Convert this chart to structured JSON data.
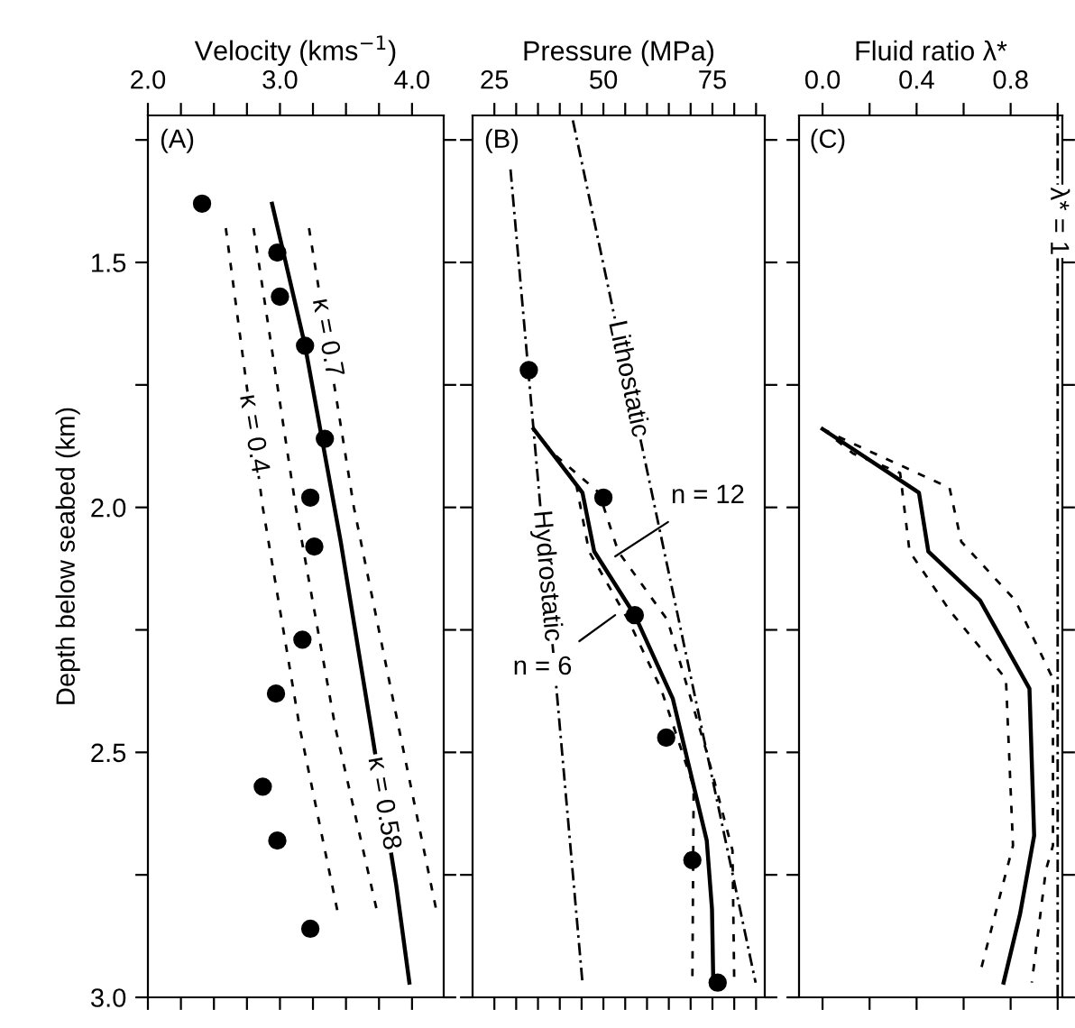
{
  "chart_data": [
    {
      "type": "line",
      "title": "Velocity (kms$^{−1}$)",
      "ylabel": "Depth below seabed (km)",
      "annotations": [
        "(A)"
      ],
      "xlim": [
        2.0,
        4.24
      ],
      "xticks": [
        {
          "value": 2.0,
          "label": "2.0"
        },
        {
          "value": 2.25,
          "label": null
        },
        {
          "value": 2.5,
          "label": null
        },
        {
          "value": 2.75,
          "label": null
        },
        {
          "value": 3.0,
          "label": "3.0"
        },
        {
          "value": 3.25,
          "label": null
        },
        {
          "value": 3.5,
          "label": null
        },
        {
          "value": 3.75,
          "label": null
        },
        {
          "value": 4.0,
          "label": "4.0"
        }
      ],
      "ylim": [
        3.0,
        1.2
      ],
      "yticks": [
        {
          "value": 1.25,
          "label": null
        },
        1.5,
        {
          "value": 1.75,
          "label": null
        },
        {
          "value": 2.0,
          "label": "2.0"
        },
        {
          "value": 2.25,
          "label": null
        },
        2.5,
        {
          "value": 2.75,
          "label": null
        },
        {
          "value": 3.0,
          "label": "3.0"
        }
      ],
      "grid": false,
      "legend": false,
      "series": [
        {
          "name": "κ = 0.4",
          "color": "#000000",
          "line_style": "dashed",
          "marker": "none",
          "x": [
            2.59,
            2.87,
            3.15,
            3.44
          ],
          "values": [
            1.43,
            2.0,
            2.45,
            2.83
          ]
        },
        {
          "color": "#000000",
          "line_style": "dashed",
          "marker": "none",
          "x": [
            2.8,
            3.12,
            3.42,
            3.74
          ],
          "values": [
            1.43,
            2.0,
            2.45,
            2.83
          ]
        },
        {
          "name": "κ = 0.58",
          "color": "#000000",
          "line_style": "solid",
          "marker": "none",
          "x": [
            2.94,
            3.19,
            3.46,
            3.69,
            3.88,
            3.98
          ],
          "values": [
            1.38,
            1.67,
            2.07,
            2.45,
            2.77,
            2.97
          ]
        },
        {
          "name": "κ = 0.7",
          "color": "#000000",
          "line_style": "dashed",
          "marker": "none",
          "x": [
            3.22,
            3.56,
            3.9,
            4.19
          ],
          "values": [
            1.43,
            2.0,
            2.45,
            2.83
          ]
        },
        {
          "type": "scatter",
          "color": "#000000",
          "marker": "circle",
          "x": [
            2.41,
            2.98,
            3.0,
            3.19,
            3.34,
            3.23,
            3.26,
            3.17,
            2.97,
            2.87,
            2.98,
            3.23
          ],
          "values": [
            1.38,
            1.48,
            1.57,
            1.67,
            1.86,
            1.98,
            2.08,
            2.27,
            2.38,
            2.57,
            2.68,
            2.86
          ]
        }
      ]
    },
    {
      "type": "line",
      "title": "Pressure (MPa)",
      "tick_labels": "x",
      "annotations": [
        "(B)",
        {
          "text": "n = 12",
          "x": 52.7,
          "y": 2.1
        },
        {
          "text": "n = 6",
          "x": 52.7,
          "y": 2.22
        }
      ],
      "xlim": [
        20,
        87
      ],
      "xticks": [
        25,
        {
          "value": 30,
          "label": null
        },
        {
          "value": 35,
          "label": null
        },
        {
          "value": 40,
          "label": null
        },
        {
          "value": 45,
          "label": null
        },
        50,
        {
          "value": 55,
          "label": null
        },
        {
          "value": 60,
          "label": null
        },
        {
          "value": 65,
          "label": null
        },
        {
          "value": 70,
          "label": null
        },
        75,
        {
          "value": 80,
          "label": null
        },
        {
          "value": 85,
          "label": null
        }
      ],
      "ylim": [
        3.0,
        1.2
      ],
      "yticks": [
        1.25,
        1.5,
        1.75,
        2.0,
        2.25,
        2.5,
        2.75,
        3.0
      ],
      "grid": false,
      "legend": false,
      "series": [
        {
          "name": "Lithostatic",
          "color": "#000000",
          "line_style": "dashdot",
          "marker": "none",
          "x": [
            43.0,
            84.9
          ],
          "values": [
            1.21,
            2.97
          ]
        },
        {
          "name": "Hydrostatic",
          "color": "#000000",
          "line_style": "dashdot",
          "marker": "none",
          "x": [
            28.7,
            45.2
          ],
          "values": [
            1.31,
            2.97
          ]
        },
        {
          "color": "#000000",
          "line_style": "dashed",
          "marker": "none",
          "x": [
            34.0,
            43.7,
            46.7,
            55.7,
            63.2,
            70.7,
            70.4
          ],
          "values": [
            1.84,
            1.95,
            2.09,
            2.23,
            2.37,
            2.57,
            2.97
          ]
        },
        {
          "color": "#000000",
          "line_style": "dashed",
          "marker": "none",
          "x": [
            34.0,
            38.5,
            49.0,
            53.4,
            64.7,
            73.7,
            79.6,
            80.0
          ],
          "values": [
            1.84,
            1.89,
            1.97,
            2.09,
            2.23,
            2.5,
            2.7,
            2.97
          ]
        },
        {
          "color": "#000000",
          "line_style": "solid",
          "marker": "none",
          "x": [
            34.0,
            45.2,
            47.9,
            57.2,
            65.9,
            73.7,
            74.9,
            75.2
          ],
          "values": [
            1.84,
            1.97,
            2.09,
            2.22,
            2.39,
            2.68,
            2.82,
            2.97
          ]
        },
        {
          "type": "scatter",
          "color": "#000000",
          "marker": "circle",
          "x": [
            32.9,
            50.0,
            57.2,
            64.4,
            70.4,
            76.2
          ],
          "values": [
            1.72,
            1.98,
            2.22,
            2.47,
            2.72,
            2.97
          ]
        }
      ]
    },
    {
      "type": "line",
      "title": "Fluid ratio λ*",
      "tick_labels": "x",
      "annotations": [
        "(C)"
      ],
      "xlim": [
        -0.1,
        1.02
      ],
      "xticks": [
        {
          "value": 0.0,
          "label": "0.0"
        },
        {
          "value": 0.2,
          "label": null
        },
        0.4,
        {
          "value": 0.6,
          "label": null
        },
        0.8,
        {
          "value": 1.0,
          "label": null
        }
      ],
      "ylim": [
        3.0,
        1.2
      ],
      "yticks": [
        1.25,
        1.5,
        1.75,
        2.0,
        2.25,
        2.5,
        2.75,
        3.0
      ],
      "grid": false,
      "legend": false,
      "ref_lines": [
        {
          "axis": "x",
          "value": 1.0,
          "label": "λ* = 1",
          "color": "#000000",
          "line_style": "dashdot"
        }
      ],
      "series": [
        {
          "color": "#000000",
          "line_style": "dashed",
          "marker": "none",
          "x": [
            0.0,
            0.13,
            0.33,
            0.37,
            0.54,
            0.78,
            0.81,
            0.67
          ],
          "values": [
            1.84,
            1.89,
            1.93,
            2.09,
            2.21,
            2.35,
            2.69,
            2.95
          ]
        },
        {
          "color": "#000000",
          "line_style": "dashed",
          "marker": "none",
          "x": [
            0.0,
            0.13,
            0.54,
            0.59,
            0.82,
            0.98,
            0.98,
            0.95,
            0.89
          ],
          "values": [
            1.84,
            1.87,
            1.96,
            2.07,
            2.19,
            2.35,
            2.69,
            2.74,
            2.97
          ]
        },
        {
          "color": "#000000",
          "line_style": "solid",
          "marker": "none",
          "x": [
            0.0,
            0.41,
            0.45,
            0.67,
            0.88,
            0.9,
            0.84,
            0.77
          ],
          "values": [
            1.84,
            1.97,
            2.09,
            2.19,
            2.37,
            2.67,
            2.83,
            2.97
          ]
        }
      ]
    }
  ]
}
